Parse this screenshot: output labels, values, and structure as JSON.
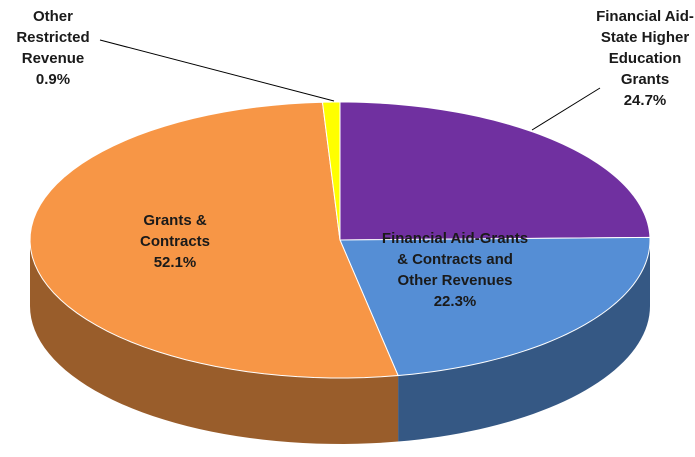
{
  "chart_data": {
    "type": "pie3d",
    "categories": [
      "Financial Aid-State Higher Education Grants",
      "Financial Aid-Grants & Contracts and Other Revenues",
      "Grants & Contracts",
      "Other Restricted Revenue"
    ],
    "values": [
      24.7,
      22.3,
      52.1,
      0.9
    ],
    "value_labels": [
      "24.7%",
      "22.3%",
      "52.1%",
      "0.9%"
    ],
    "colors": [
      "#7030a0",
      "#558ed5",
      "#f79646",
      "#ffff00"
    ]
  }
}
